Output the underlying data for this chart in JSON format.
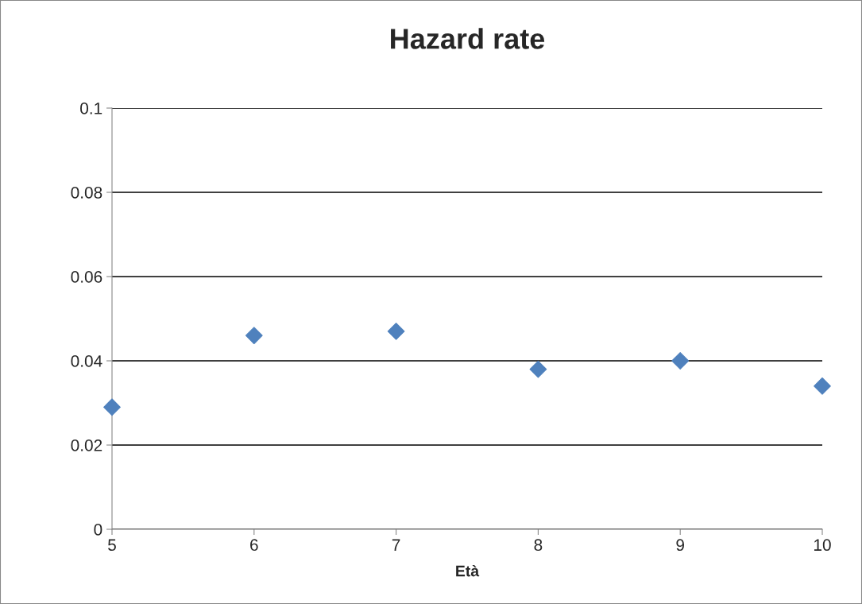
{
  "chart_data": {
    "type": "scatter",
    "title": "Hazard rate",
    "xlabel": "Età",
    "x": [
      5,
      6,
      7,
      8,
      9,
      10
    ],
    "series": [
      {
        "color": "#4f81bd",
        "values": [
          0.029,
          0.046,
          0.047,
          0.038,
          0.04,
          0.034
        ]
      }
    ],
    "xlim": [
      5,
      10
    ],
    "xticks": [
      5,
      6,
      7,
      8,
      9,
      10
    ],
    "ylim": [
      0,
      0.1
    ],
    "yticks": [
      0,
      0.02,
      0.04,
      0.06,
      0.08,
      0.1
    ],
    "grid": "y",
    "marker": "diamond"
  }
}
